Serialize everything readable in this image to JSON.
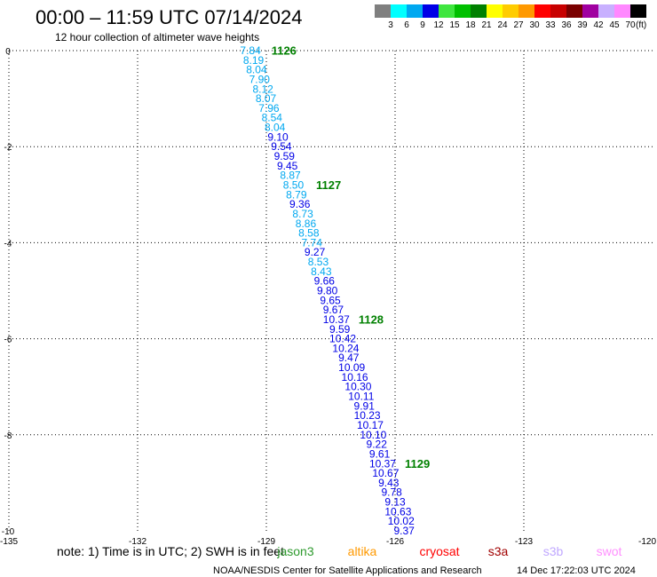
{
  "chart_data": {
    "type": "scatter",
    "title": "00:00 – 11:59 UTC 07/14/2024",
    "subtitle": "12 hour collection of altimeter wave heights",
    "xlabel": "",
    "ylabel": "",
    "xlim": [
      -135,
      -120
    ],
    "ylim": [
      -10,
      0
    ],
    "x_ticks": [
      -135,
      -132,
      -129,
      -126,
      -123,
      -120
    ],
    "y_ticks": [
      0,
      -2,
      -4,
      -6,
      -8,
      -10
    ],
    "grid": true,
    "legend_position": "top-right",
    "points": [
      {
        "lon": -129.37,
        "lat": 0.0,
        "swh": 7.84
      },
      {
        "lon": -129.3,
        "lat": -0.2,
        "swh": 8.19
      },
      {
        "lon": -129.23,
        "lat": -0.4,
        "swh": 8.04
      },
      {
        "lon": -129.16,
        "lat": -0.6,
        "swh": 7.9
      },
      {
        "lon": -129.08,
        "lat": -0.8,
        "swh": 8.12
      },
      {
        "lon": -129.01,
        "lat": -1.0,
        "swh": 8.07
      },
      {
        "lon": -128.94,
        "lat": -1.2,
        "swh": 7.96
      },
      {
        "lon": -128.87,
        "lat": -1.4,
        "swh": 8.54
      },
      {
        "lon": -128.8,
        "lat": -1.6,
        "swh": 8.04
      },
      {
        "lon": -128.73,
        "lat": -1.8,
        "swh": 9.1
      },
      {
        "lon": -128.65,
        "lat": -2.0,
        "swh": 9.54
      },
      {
        "lon": -128.58,
        "lat": -2.2,
        "swh": 9.59
      },
      {
        "lon": -128.51,
        "lat": -2.4,
        "swh": 9.45
      },
      {
        "lon": -128.44,
        "lat": -2.6,
        "swh": 8.87
      },
      {
        "lon": -128.37,
        "lat": -2.8,
        "swh": 8.5
      },
      {
        "lon": -128.3,
        "lat": -3.0,
        "swh": 8.79
      },
      {
        "lon": -128.22,
        "lat": -3.2,
        "swh": 9.36
      },
      {
        "lon": -128.15,
        "lat": -3.4,
        "swh": 8.73
      },
      {
        "lon": -128.08,
        "lat": -3.6,
        "swh": 8.86
      },
      {
        "lon": -128.01,
        "lat": -3.8,
        "swh": 8.58
      },
      {
        "lon": -127.94,
        "lat": -4.0,
        "swh": 7.74
      },
      {
        "lon": -127.87,
        "lat": -4.2,
        "swh": 9.27
      },
      {
        "lon": -127.79,
        "lat": -4.4,
        "swh": 8.53
      },
      {
        "lon": -127.72,
        "lat": -4.6,
        "swh": 8.43
      },
      {
        "lon": -127.65,
        "lat": -4.8,
        "swh": 9.66
      },
      {
        "lon": -127.58,
        "lat": -5.0,
        "swh": 9.8
      },
      {
        "lon": -127.51,
        "lat": -5.2,
        "swh": 9.65
      },
      {
        "lon": -127.44,
        "lat": -5.4,
        "swh": 9.67
      },
      {
        "lon": -127.37,
        "lat": -5.6,
        "swh": 10.37
      },
      {
        "lon": -127.29,
        "lat": -5.8,
        "swh": 9.59
      },
      {
        "lon": -127.22,
        "lat": -6.0,
        "swh": 10.42
      },
      {
        "lon": -127.15,
        "lat": -6.2,
        "swh": 10.24
      },
      {
        "lon": -127.08,
        "lat": -6.4,
        "swh": 9.47
      },
      {
        "lon": -127.01,
        "lat": -6.6,
        "swh": 10.09
      },
      {
        "lon": -126.94,
        "lat": -6.8,
        "swh": 10.16
      },
      {
        "lon": -126.86,
        "lat": -7.0,
        "swh": 10.3
      },
      {
        "lon": -126.79,
        "lat": -7.2,
        "swh": 10.11
      },
      {
        "lon": -126.72,
        "lat": -7.4,
        "swh": 9.91
      },
      {
        "lon": -126.65,
        "lat": -7.6,
        "swh": 10.23
      },
      {
        "lon": -126.58,
        "lat": -7.8,
        "swh": 10.17
      },
      {
        "lon": -126.51,
        "lat": -8.0,
        "swh": 10.1
      },
      {
        "lon": -126.43,
        "lat": -8.2,
        "swh": 9.22
      },
      {
        "lon": -126.36,
        "lat": -8.4,
        "swh": 9.61
      },
      {
        "lon": -126.29,
        "lat": -8.6,
        "swh": 10.37
      },
      {
        "lon": -126.22,
        "lat": -8.8,
        "swh": 10.67
      },
      {
        "lon": -126.15,
        "lat": -9.0,
        "swh": 9.43
      },
      {
        "lon": -126.08,
        "lat": -9.2,
        "swh": 9.78
      },
      {
        "lon": -126.0,
        "lat": -9.4,
        "swh": 9.13
      },
      {
        "lon": -125.93,
        "lat": -9.6,
        "swh": 10.63
      },
      {
        "lon": -125.86,
        "lat": -9.8,
        "swh": 10.02
      },
      {
        "lon": -125.79,
        "lat": -10.0,
        "swh": 9.37
      }
    ],
    "time_labels": [
      {
        "text": "1126",
        "lon": -128.59,
        "lat": 0.0
      },
      {
        "text": "1127",
        "lon": -127.55,
        "lat": -2.8
      },
      {
        "text": "1128",
        "lon": -126.56,
        "lat": -5.6
      },
      {
        "text": "1129",
        "lon": -125.48,
        "lat": -8.6
      }
    ],
    "time_label_color": "#008000"
  },
  "color_scale": {
    "breaks": [
      3,
      6,
      9,
      12,
      15,
      18,
      21,
      24,
      27,
      30,
      33,
      36,
      39,
      42,
      45,
      70
    ],
    "colors": [
      "#7f7f7f",
      "#00ffff",
      "#00a8f0",
      "#0000e6",
      "#3fe63f",
      "#00c000",
      "#008000",
      "#ffff00",
      "#ffcc00",
      "#ff9900",
      "#ff0000",
      "#c80000",
      "#7a0000",
      "#a000a0",
      "#c8b0ff",
      "#ff88ff",
      "#000000"
    ],
    "unit_label": "(ft)"
  },
  "note": "note: 1) Time is in UTC; 2) SWH is in feet",
  "satellites": [
    {
      "name": "jason3",
      "color": "#2e9a2e"
    },
    {
      "name": "altika",
      "color": "#ff9900"
    },
    {
      "name": "cryosat",
      "color": "#ff0000"
    },
    {
      "name": "s3a",
      "color": "#a00000"
    },
    {
      "name": "s3b",
      "color": "#c0a8ff"
    },
    {
      "name": "swot",
      "color": "#ff90ff"
    }
  ],
  "footer": {
    "credit": "NOAA/NESDIS Center for Satellite Applications and Research",
    "timestamp": "14 Dec 17:22:03 UTC 2024"
  }
}
